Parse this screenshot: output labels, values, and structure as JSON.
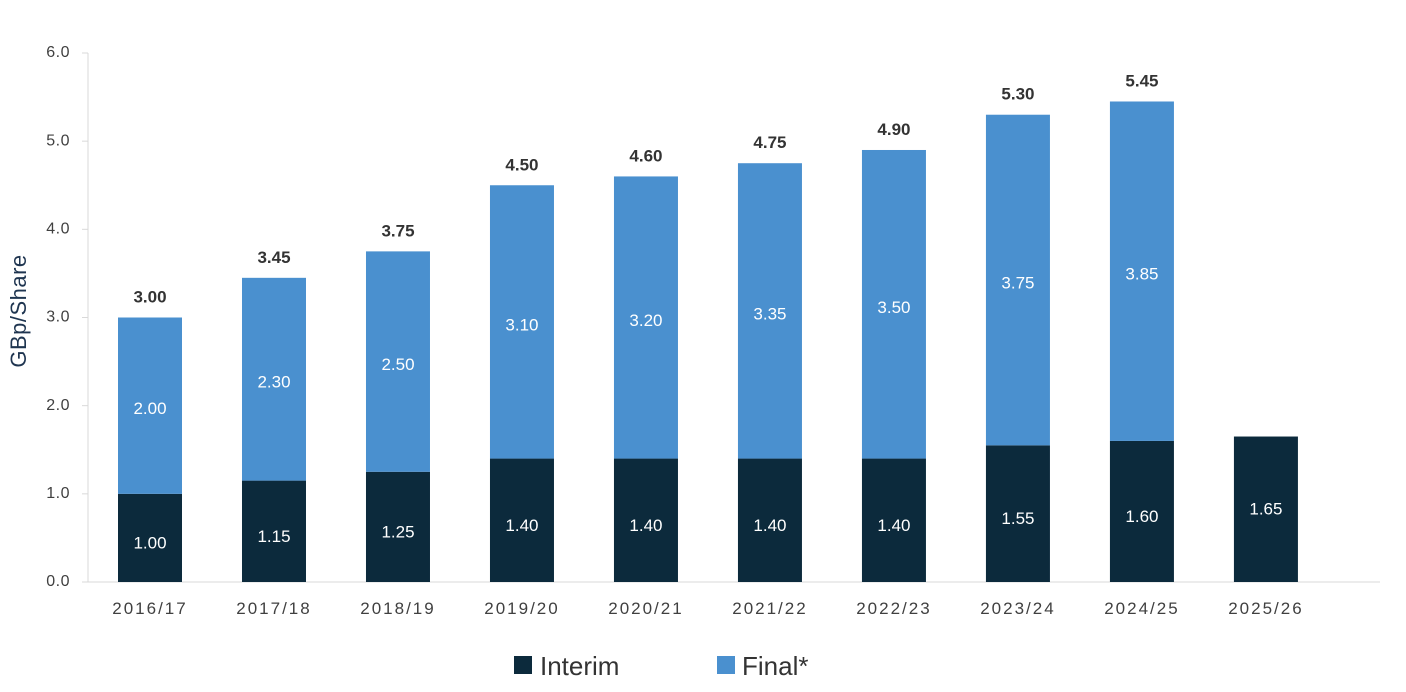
{
  "chart_data": {
    "type": "bar",
    "stacked": true,
    "categories": [
      "2016/17",
      "2017/18",
      "2018/19",
      "2019/20",
      "2020/21",
      "2021/22",
      "2022/23",
      "2023/24",
      "2024/25",
      "2025/26"
    ],
    "series": [
      {
        "name": "Interim",
        "color": "#0c2a3c",
        "values": [
          1.0,
          1.15,
          1.25,
          1.4,
          1.4,
          1.4,
          1.4,
          1.55,
          1.6,
          1.65
        ]
      },
      {
        "name": "Final*",
        "color": "#4a90cf",
        "values": [
          2.0,
          2.3,
          2.5,
          3.1,
          3.2,
          3.35,
          3.5,
          3.75,
          3.85,
          null
        ]
      }
    ],
    "segment_labels": {
      "Interim": [
        "1.00",
        "1.15",
        "1.25",
        "1.40",
        "1.40",
        "1.40",
        "1.40",
        "1.55",
        "1.60",
        "1.65"
      ],
      "Final*": [
        "2.00",
        "2.30",
        "2.50",
        "3.10",
        "3.20",
        "3.35",
        "3.50",
        "3.75",
        "3.85",
        ""
      ]
    },
    "totals": [
      "3.00",
      "3.45",
      "3.75",
      "4.50",
      "4.60",
      "4.75",
      "4.90",
      "5.30",
      "5.45",
      ""
    ],
    "title": "",
    "xlabel": "",
    "ylabel": "GBp/Share",
    "ylim": [
      0,
      6
    ],
    "yticks": [
      "0.0",
      "1.0",
      "2.0",
      "3.0",
      "4.0",
      "5.0",
      "6.0"
    ],
    "grid": false,
    "legend": "bottom-center"
  }
}
